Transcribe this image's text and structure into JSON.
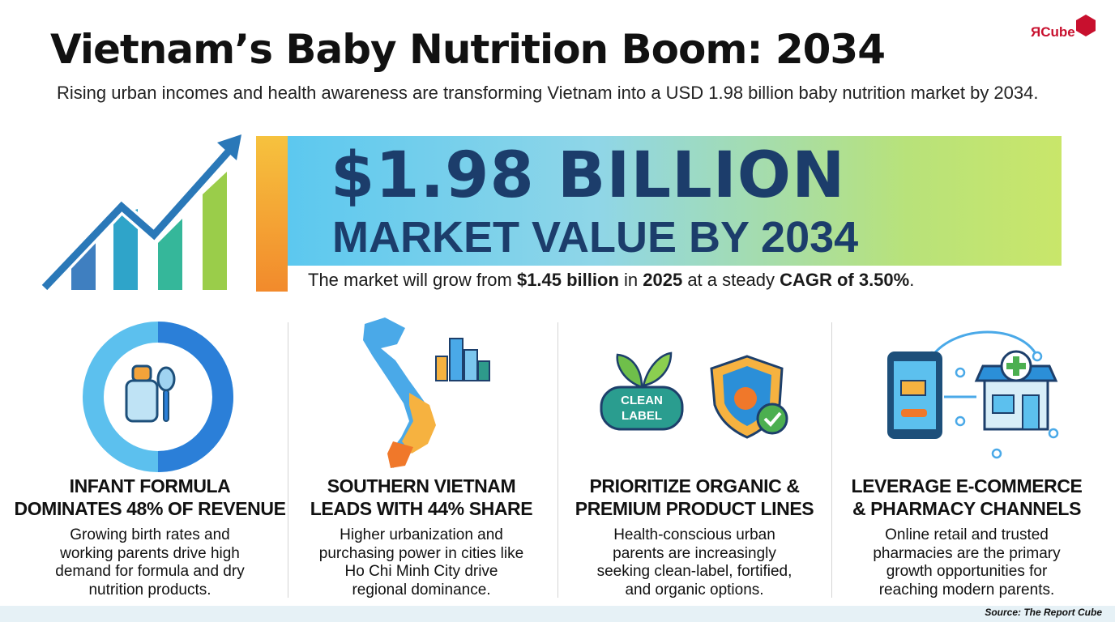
{
  "header": {
    "title": "Vietnam’s Baby Nutrition Boom: 2034",
    "subtitle": "Rising urban incomes and health awareness are transforming Vietnam into a USD 1.98 billion baby nutrition market by 2034.",
    "logo": "ЯCube"
  },
  "hero": {
    "headline": "$1.98 BILLION",
    "subheadline": "MARKET VALUE BY 2034",
    "sentence": [
      {
        "text": "The market will grow from ",
        "bold": false
      },
      {
        "text": "$1.45 billion",
        "bold": true
      },
      {
        "text": " in ",
        "bold": false
      },
      {
        "text": "2025",
        "bold": true
      },
      {
        "text": " at a steady ",
        "bold": false
      },
      {
        "text": "CAGR of 3.50%",
        "bold": true
      },
      {
        "text": ".",
        "bold": false
      }
    ]
  },
  "icons": {
    "clean_label": [
      "CLEAN",
      "LABEL"
    ]
  },
  "cards": [
    {
      "title": [
        "INFANT FORMULA",
        "DOMINATES 48% OF REVENUE"
      ],
      "body": [
        "Growing birth rates and",
        "working parents drive high",
        "demand for formula and dry",
        "nutrition products."
      ]
    },
    {
      "title": [
        "SOUTHERN VIETNAM",
        "LEADS WITH 44% SHARE"
      ],
      "body": [
        "Higher urbanization and",
        "purchasing power in cities like",
        "Ho Chi Minh City drive",
        "regional dominance."
      ]
    },
    {
      "title": [
        "PRIORITIZE ORGANIC &",
        "PREMIUM PRODUCT LINES"
      ],
      "body": [
        "Health-conscious urban",
        "parents are increasingly",
        "seeking clean-label, fortified,",
        "and organic options."
      ]
    },
    {
      "title": [
        "LEVERAGE E-COMMERCE",
        "& PHARMACY CHANNELS"
      ],
      "body": [
        "Online retail and trusted",
        "pharmacies are the primary",
        "growth opportunities for",
        "reaching modern parents."
      ]
    }
  ],
  "footer": {
    "source": "Source: The Report Cube"
  }
}
